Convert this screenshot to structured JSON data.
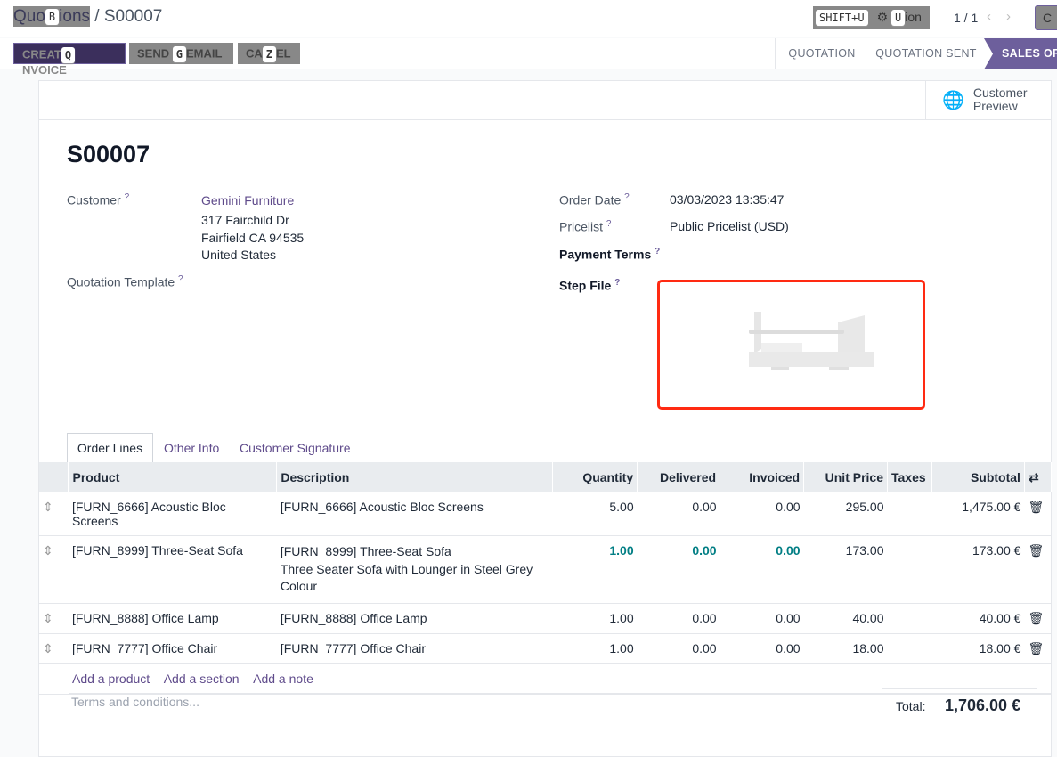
{
  "breadcrumb": {
    "parent": "Quotations",
    "parent_visible_a": "Quo",
    "parent_visible_b": "ions",
    "parent_key": "B",
    "current": "S00007"
  },
  "toolbar": {
    "shortcut_hint": "SHIFT+U",
    "action_key": "U",
    "action_visible": "ion",
    "pager": "1 / 1",
    "new_visible": "C"
  },
  "buttons": [
    {
      "a": "CREAT",
      "key": "Q",
      "b": "NVOICE"
    },
    {
      "a": "SEND ",
      "key": "G",
      "b": "EMAIL"
    },
    {
      "a": "CA",
      "key": "Z",
      "b": "EL"
    }
  ],
  "status": [
    "QUOTATION",
    "QUOTATION SENT",
    "SALES ORDER"
  ],
  "status_active_color": "#6d5f9c",
  "customer_preview": {
    "line1": "Customer",
    "line2": "Preview"
  },
  "title": "S00007",
  "fields": {
    "customer_label": "Customer",
    "customer_name": "Gemini Furniture",
    "address": [
      "317 Fairchild Dr",
      "Fairfield CA 94535",
      "United States"
    ],
    "template_label": "Quotation Template",
    "order_date_label": "Order Date",
    "order_date": "03/03/2023 13:35:47",
    "pricelist_label": "Pricelist",
    "pricelist": "Public Pricelist (USD)",
    "payment_terms_label": "Payment Terms",
    "step_file_label": "Step File",
    "help": "?"
  },
  "tabs": [
    "Order Lines",
    "Other Info",
    "Customer Signature"
  ],
  "table": {
    "headers": [
      "Product",
      "Description",
      "Quantity",
      "Delivered",
      "Invoiced",
      "Unit Price",
      "Taxes",
      "Subtotal"
    ],
    "rows": [
      {
        "product": "[FURN_6666] Acoustic Bloc Screens",
        "desc": [
          "[FURN_6666] Acoustic Bloc Screens"
        ],
        "qty": "5.00",
        "delivered": "0.00",
        "invoiced": "0.00",
        "price": "295.00",
        "taxes": "",
        "subtotal": "1,475.00 €"
      },
      {
        "product": "[FURN_8999] Three-Seat Sofa",
        "desc": [
          "[FURN_8999] Three-Seat Sofa",
          "Three Seater Sofa with Lounger in Steel Grey",
          "Colour"
        ],
        "qty": "1.00",
        "delivered": "0.00",
        "invoiced": "0.00",
        "price": "173.00",
        "taxes": "",
        "subtotal": "173.00 €"
      },
      {
        "product": "[FURN_8888] Office Lamp",
        "desc": [
          "[FURN_8888] Office Lamp"
        ],
        "qty": "1.00",
        "delivered": "0.00",
        "invoiced": "0.00",
        "price": "40.00",
        "taxes": "",
        "subtotal": "40.00 €"
      },
      {
        "product": "[FURN_7777] Office Chair",
        "desc": [
          "[FURN_7777] Office Chair"
        ],
        "qty": "1.00",
        "delivered": "0.00",
        "invoiced": "0.00",
        "price": "18.00",
        "taxes": "",
        "subtotal": "18.00 €"
      }
    ],
    "add_product": "Add a product",
    "add_section": "Add a section",
    "add_note": "Add a note"
  },
  "footer": {
    "terms_placeholder": "Terms and conditions...",
    "total_label": "Total:",
    "total": "1,706.00 €"
  }
}
